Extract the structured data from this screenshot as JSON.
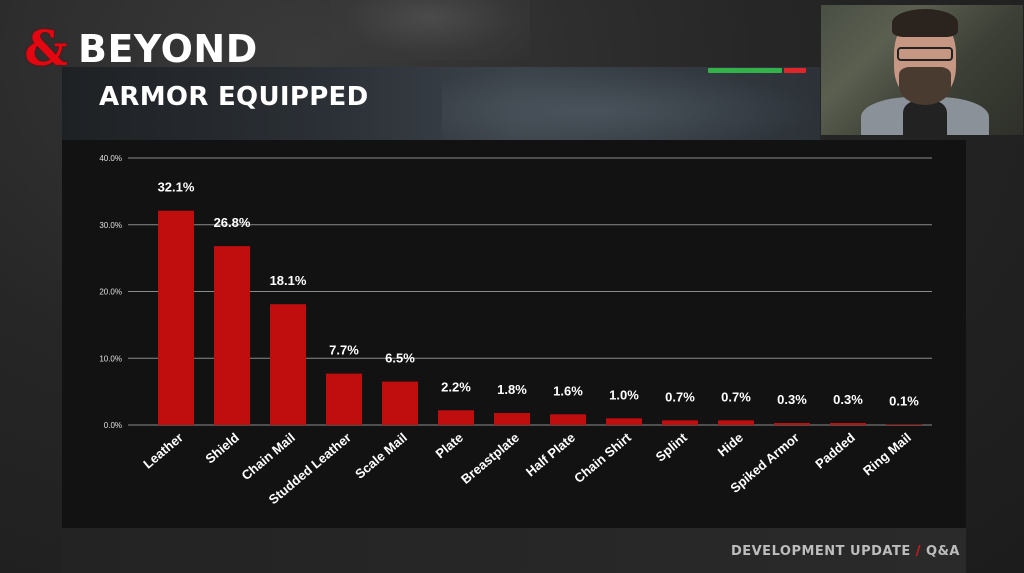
{
  "brand": {
    "amp_glyph": "&",
    "name": "BEYOND",
    "accent": "#e40712"
  },
  "slide": {
    "title": "ARMOR EQUIPPED"
  },
  "footer": {
    "left": "DEVELOPMENT UPDATE",
    "slash": "/",
    "right": "Q&A"
  },
  "icons": [
    "dnd-ampersand-logo",
    "webcam-feed"
  ],
  "chart_data": {
    "type": "bar",
    "title": "",
    "xlabel": "",
    "ylabel": "",
    "ylim": [
      0,
      40
    ],
    "y_ticks": [
      "0.0%",
      "10.0%",
      "20.0%",
      "30.0%",
      "40.0%"
    ],
    "grid": true,
    "bar_color": "#c00d0d",
    "categories": [
      "Leather",
      "Shield",
      "Chain Mail",
      "Studded Leather",
      "Scale Mail",
      "Plate",
      "Breastplate",
      "Half Plate",
      "Chain Shirt",
      "Splint",
      "Hide",
      "Spiked Armor",
      "Padded",
      "Ring Mail"
    ],
    "values": [
      32.1,
      26.8,
      18.1,
      7.7,
      6.5,
      2.2,
      1.8,
      1.6,
      1.0,
      0.7,
      0.7,
      0.3,
      0.3,
      0.1
    ],
    "data_labels": [
      "32.1%",
      "26.8%",
      "18.1%",
      "7.7%",
      "6.5%",
      "2.2%",
      "1.8%",
      "1.6%",
      "1.0%",
      "0.7%",
      "0.7%",
      "0.3%",
      "0.3%",
      "0.1%"
    ]
  }
}
